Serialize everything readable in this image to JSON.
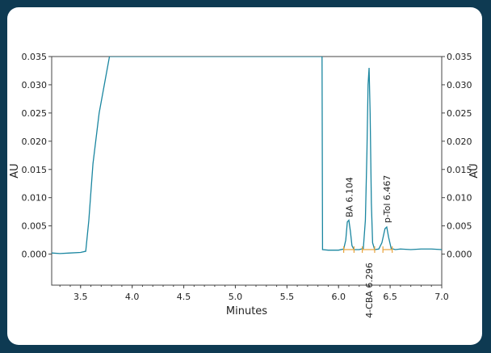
{
  "chart_data": {
    "type": "line",
    "xlabel": "Minutes",
    "ylabel": "AU",
    "y2label": "AU",
    "xlim": [
      3.22,
      7.0
    ],
    "ylim": [
      -0.0055,
      0.035
    ],
    "xticks": [
      "3.5",
      "4.0",
      "4.5",
      "5.0",
      "5.5",
      "6.0",
      "6.5",
      "7.0"
    ],
    "yticks": [
      "0.000",
      "0.005",
      "0.010",
      "0.015",
      "0.020",
      "0.025",
      "0.030",
      "0.035"
    ],
    "grid": false,
    "series": [
      {
        "color": "#1a86a0",
        "x": [
          3.22,
          3.3,
          3.4,
          3.5,
          3.55,
          3.58,
          3.62,
          3.68,
          3.74,
          3.78,
          5.84,
          5.845,
          5.9,
          6.0,
          6.05,
          6.07,
          6.085,
          6.1,
          6.115,
          6.13,
          6.15,
          6.2,
          6.24,
          6.26,
          6.275,
          6.286,
          6.296,
          6.306,
          6.318,
          6.33,
          6.35,
          6.39,
          6.42,
          6.45,
          6.467,
          6.485,
          6.51,
          6.55,
          6.6,
          6.7,
          6.8,
          6.9,
          7.0
        ],
        "y": [
          0.0002,
          0.0001,
          0.0002,
          0.0003,
          0.0005,
          0.006,
          0.016,
          0.025,
          0.031,
          0.035,
          0.035,
          0.0008,
          0.0007,
          0.0007,
          0.0009,
          0.0025,
          0.0057,
          0.006,
          0.004,
          0.0015,
          0.0008,
          0.0008,
          0.001,
          0.006,
          0.018,
          0.03,
          0.033,
          0.025,
          0.009,
          0.002,
          0.0008,
          0.0009,
          0.002,
          0.0045,
          0.0048,
          0.003,
          0.001,
          0.0008,
          0.0009,
          0.0008,
          0.0009,
          0.0009,
          0.0008
        ]
      }
    ],
    "annotations": [
      {
        "label": "BA 6.104",
        "x": 6.104,
        "y": 0.0065,
        "side": "above"
      },
      {
        "label": "4-CBA 6.296",
        "x": 6.296,
        "y": -0.0015,
        "side": "below"
      },
      {
        "label": "p-Tol 6.467",
        "x": 6.467,
        "y": 0.0055,
        "side": "above"
      }
    ],
    "integration_marks": [
      6.05,
      6.15,
      6.23,
      6.35,
      6.43,
      6.52
    ],
    "mark_color": "#e8a33a"
  }
}
